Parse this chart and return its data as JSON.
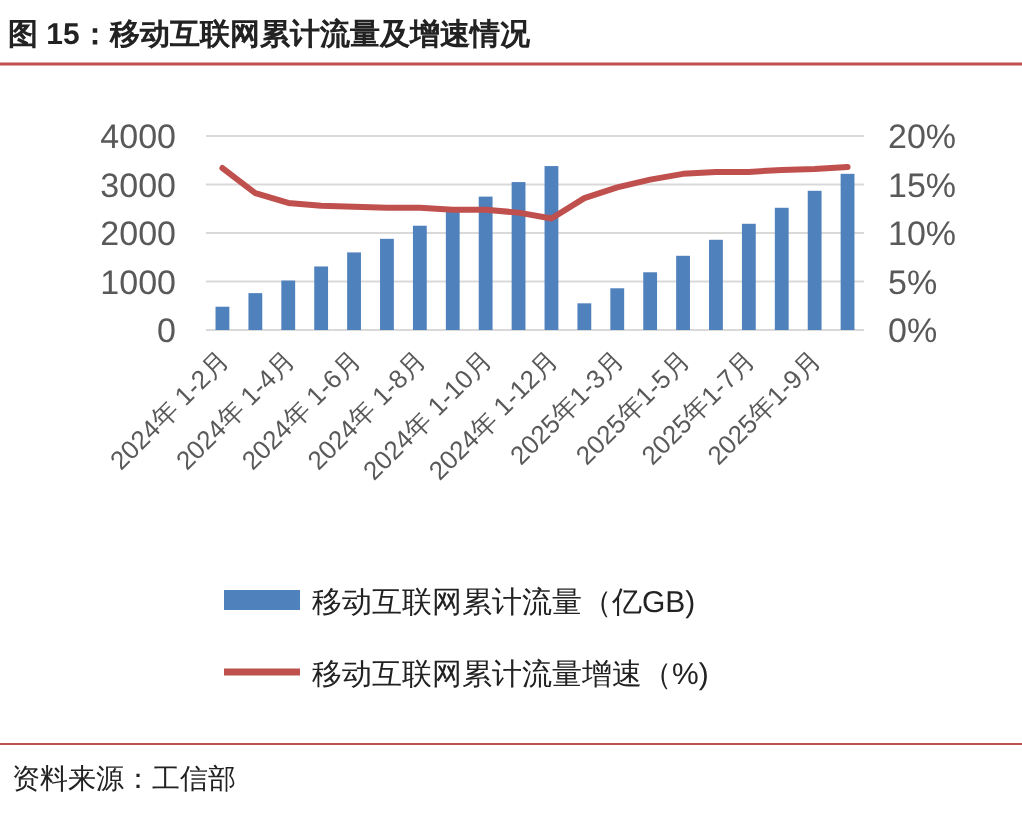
{
  "chart_data": {
    "type": "bar",
    "title": "图 15：移动互联网累计流量及增速情况",
    "categories": [
      "2024年 1-2月",
      null,
      "2024年 1-4月",
      null,
      "2024年 1-6月",
      null,
      "2024年 1-8月",
      null,
      "2024年 1-10月",
      null,
      "2024年 1-12月",
      null,
      "2025年1-3月",
      null,
      "2025年1-5月",
      null,
      "2025年1-7月",
      null,
      "2025年1-9月",
      null
    ],
    "series": [
      {
        "name": "移动互联网累计流量（亿GB)",
        "color": "#4f81bd",
        "values": [
          480,
          760,
          1020,
          1310,
          1600,
          1880,
          2150,
          2450,
          2750,
          3050,
          3380,
          550,
          860,
          1190,
          1530,
          1860,
          2190,
          2520,
          2870,
          3220
        ]
      },
      {
        "name": "移动互联网累计流量增速（%)",
        "type": "line",
        "axis": "y2",
        "color": "#c0504d",
        "values": [
          16.7,
          14.1,
          13.1,
          12.8,
          12.7,
          12.6,
          12.6,
          12.4,
          12.4,
          12.1,
          11.5,
          13.6,
          14.7,
          15.5,
          16.1,
          16.3,
          16.3,
          16.5,
          16.6,
          16.8
        ]
      }
    ],
    "ylim": [
      0,
      4000
    ],
    "yticks": [
      0,
      1000,
      2000,
      3000,
      4000
    ],
    "y2lim": [
      0,
      20
    ],
    "y2ticks": [
      {
        "value": 0,
        "label": "0%"
      },
      {
        "value": 5,
        "label": "5%"
      },
      {
        "value": 10,
        "label": "10%"
      },
      {
        "value": 15,
        "label": "15%"
      },
      {
        "value": 20,
        "label": "20%"
      }
    ],
    "grid": "y",
    "legend": "bottom",
    "annotations": [
      "资料来源：工信部"
    ]
  }
}
